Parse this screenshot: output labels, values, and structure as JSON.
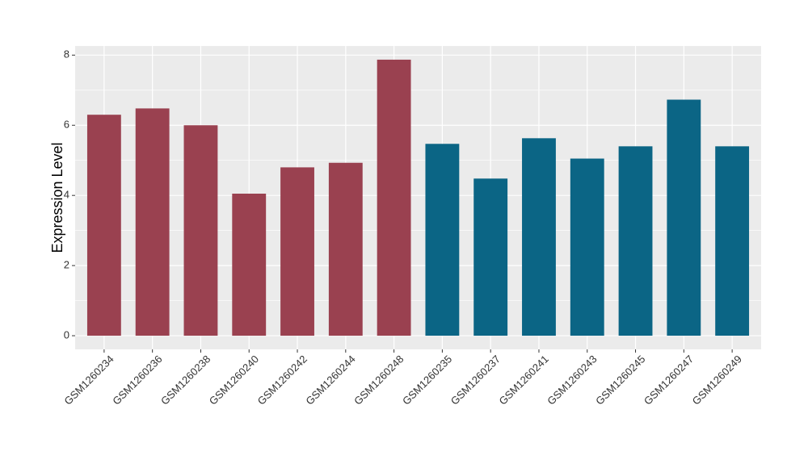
{
  "chart_data": {
    "type": "bar",
    "y_label": "Expression Level",
    "categories": [
      "GSM1260234",
      "GSM1260236",
      "GSM1260238",
      "GSM1260240",
      "GSM1260242",
      "GSM1260244",
      "GSM1260248",
      "GSM1260235",
      "GSM1260237",
      "GSM1260241",
      "GSM1260243",
      "GSM1260245",
      "GSM1260247",
      "GSM1260249"
    ],
    "values": [
      6.3,
      6.48,
      6.0,
      4.05,
      4.8,
      4.93,
      7.87,
      5.47,
      4.48,
      5.63,
      5.05,
      5.4,
      6.73,
      5.4
    ],
    "colors": [
      "#9a4150",
      "#9a4150",
      "#9a4150",
      "#9a4150",
      "#9a4150",
      "#9a4150",
      "#9a4150",
      "#0b6585",
      "#0b6585",
      "#0b6585",
      "#0b6585",
      "#0b6585",
      "#0b6585",
      "#0b6585"
    ],
    "ylim": [
      -0.39,
      8.26
    ],
    "yticks": [
      0,
      2,
      4,
      6,
      8
    ],
    "minor_yticks": [
      1,
      3,
      5,
      7
    ],
    "grid": true
  }
}
